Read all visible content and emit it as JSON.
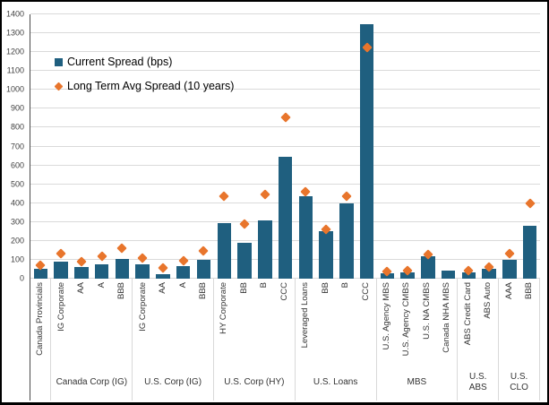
{
  "chart_data": {
    "type": "bar",
    "title": "",
    "xlabel": "",
    "ylabel": "",
    "ylim": [
      0,
      1400
    ],
    "grid": true,
    "legend_position": "upper-left-inside",
    "y_ticks": [
      0,
      100,
      200,
      300,
      400,
      500,
      600,
      700,
      800,
      900,
      1000,
      1100,
      1200,
      1300,
      1400
    ],
    "legend": [
      {
        "label": "Current Spread (bps)",
        "marker": "square",
        "color": "#1F5F7F"
      },
      {
        "label": "Long Term Avg Spread (10 years)",
        "marker": "diamond",
        "color": "#E8752C"
      }
    ],
    "colors": {
      "bar": "#1F5F7F",
      "avg_marker": "#E8752C",
      "gridline": "#DADADA",
      "axis_line": "#4A4A4A"
    },
    "series_names": [
      "Current Spread (bps)",
      "Long Term Avg Spread (10 years)"
    ],
    "groups": [
      {
        "label": "",
        "items": [
          {
            "cat": "Canada Provincials",
            "bar": 50,
            "avg": 70
          }
        ]
      },
      {
        "label": "Canada Corp (IG)",
        "items": [
          {
            "cat": "IG Corporate",
            "bar": 90,
            "avg": 135
          },
          {
            "cat": "AA",
            "bar": 60,
            "avg": 90
          },
          {
            "cat": "A",
            "bar": 75,
            "avg": 120
          },
          {
            "cat": "BBB",
            "bar": 105,
            "avg": 160
          }
        ]
      },
      {
        "label": "U.S. Corp (IG)",
        "items": [
          {
            "cat": "IG Corporate",
            "bar": 75,
            "avg": 110
          },
          {
            "cat": "AA",
            "bar": 25,
            "avg": 55
          },
          {
            "cat": "A",
            "bar": 65,
            "avg": 95
          },
          {
            "cat": "BBB",
            "bar": 100,
            "avg": 145
          }
        ]
      },
      {
        "label": "U.S. Corp (HY)",
        "items": [
          {
            "cat": "HY Corporate",
            "bar": 295,
            "avg": 435
          },
          {
            "cat": "BB",
            "bar": 190,
            "avg": 290
          },
          {
            "cat": "B",
            "bar": 310,
            "avg": 445
          },
          {
            "cat": "CCC",
            "bar": 645,
            "avg": 855
          }
        ]
      },
      {
        "label": "U.S. Loans",
        "items": [
          {
            "cat": "Leveraged Loans",
            "bar": 435,
            "avg": 460
          },
          {
            "cat": "BB",
            "bar": 250,
            "avg": 260
          },
          {
            "cat": "B",
            "bar": 400,
            "avg": 435
          },
          {
            "cat": "CCC",
            "bar": 1350,
            "avg": 1225
          }
        ]
      },
      {
        "label": "MBS",
        "items": [
          {
            "cat": "U.S. Agency MBS",
            "bar": 30,
            "avg": 40
          },
          {
            "cat": "U.S. Agency CMBS",
            "bar": 35,
            "avg": 45
          },
          {
            "cat": "U.S. NA CMBS",
            "bar": 120,
            "avg": 130
          },
          {
            "cat": "Canada NHA MBS",
            "bar": 45,
            "avg": null
          }
        ]
      },
      {
        "label": "U.S. ABS",
        "items": [
          {
            "cat": "ABS Credit Card",
            "bar": 35,
            "avg": 45
          },
          {
            "cat": "ABS Auto",
            "bar": 50,
            "avg": 60
          }
        ]
      },
      {
        "label": "U.S. CLO",
        "items": [
          {
            "cat": "AAA",
            "bar": 100,
            "avg": 135
          },
          {
            "cat": "BBB",
            "bar": 280,
            "avg": 400
          }
        ]
      }
    ]
  }
}
